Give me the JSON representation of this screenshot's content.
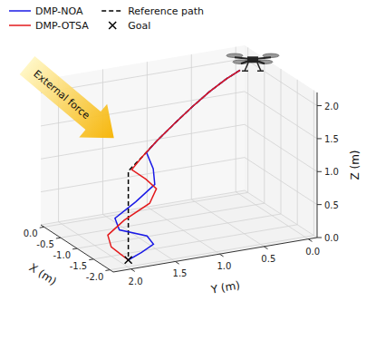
{
  "chart_data": {
    "type": "line3d",
    "annotation": "External force",
    "x_label": "X (m)",
    "y_label": "Y (m)",
    "z_label": "Z (m)",
    "xlim": [
      -2.1,
      0.1
    ],
    "ylim": [
      -0.1,
      2.2
    ],
    "zlim": [
      0,
      2.2
    ],
    "xticks": [
      {
        "value": 0,
        "label": "0.0"
      },
      -0.5,
      {
        "value": -1,
        "label": "-1.0"
      },
      -1.5,
      {
        "value": -2,
        "label": "-2.0"
      }
    ],
    "yticks": [
      {
        "value": 2,
        "label": "2.0"
      },
      1.5,
      {
        "value": 1,
        "label": "1.0"
      },
      0.5,
      {
        "value": 0,
        "label": "0.0"
      }
    ],
    "zticks": [
      {
        "value": 0,
        "label": "0.0"
      },
      0.5,
      {
        "value": 1,
        "label": "1.0"
      },
      1.5,
      {
        "value": 2,
        "label": "2.0"
      }
    ],
    "grid": true,
    "legend": "top",
    "series": [
      {
        "name": "DMP-NOA",
        "color": "#1a1ae6",
        "line_style": "solid",
        "x": [
          -0.3,
          -0.47,
          -0.69,
          -0.92,
          -1.16,
          -1.39,
          -1.55,
          -1.7,
          -1.8,
          -1.84,
          -1.83,
          -1.8,
          -1.78,
          -1.76,
          -1.75,
          -1.75
        ],
        "y": [
          0.1,
          0.32,
          0.59,
          0.87,
          1.16,
          1.45,
          1.62,
          1.6,
          1.62,
          1.85,
          2.08,
          2.02,
          1.7,
          1.62,
          1.75,
          1.9
        ],
        "z": [
          2.0,
          1.97,
          1.91,
          1.82,
          1.71,
          1.58,
          1.5,
          1.3,
          1.1,
          0.9,
          0.7,
          0.5,
          0.33,
          0.18,
          0.08,
          0.0
        ]
      },
      {
        "name": "DMP-OTSA",
        "color": "#e31a1c",
        "line_style": "solid",
        "x": [
          -0.3,
          -0.47,
          -0.69,
          -0.92,
          -1.16,
          -1.39,
          -1.58,
          -1.72,
          -1.8,
          -1.85,
          -1.86,
          -1.84,
          -1.8,
          -1.77,
          -1.75,
          -1.75
        ],
        "y": [
          0.1,
          0.32,
          0.59,
          0.87,
          1.16,
          1.45,
          1.68,
          1.85,
          1.72,
          1.62,
          1.7,
          1.98,
          2.15,
          2.1,
          1.98,
          1.9
        ],
        "z": [
          2.0,
          1.97,
          1.91,
          1.82,
          1.71,
          1.58,
          1.46,
          1.35,
          1.2,
          1.05,
          0.85,
          0.65,
          0.45,
          0.25,
          0.1,
          0.0
        ]
      },
      {
        "name": "Reference path",
        "color": "#000000",
        "line_style": "dashed",
        "x": [
          -0.3,
          -0.47,
          -0.69,
          -0.92,
          -1.16,
          -1.39,
          -1.58,
          -1.75,
          -1.75,
          -1.75,
          -1.75
        ],
        "y": [
          0.1,
          0.32,
          0.59,
          0.87,
          1.16,
          1.45,
          1.68,
          1.9,
          1.9,
          1.9,
          1.9
        ],
        "z": [
          2.0,
          1.97,
          1.91,
          1.82,
          1.71,
          1.58,
          1.46,
          1.35,
          1.0,
          0.5,
          0.0
        ]
      },
      {
        "name": "Goal",
        "type": "scatter",
        "marker": "x",
        "color": "#000000",
        "x": [
          -1.75
        ],
        "y": [
          1.9
        ],
        "z": [
          0
        ]
      }
    ]
  }
}
